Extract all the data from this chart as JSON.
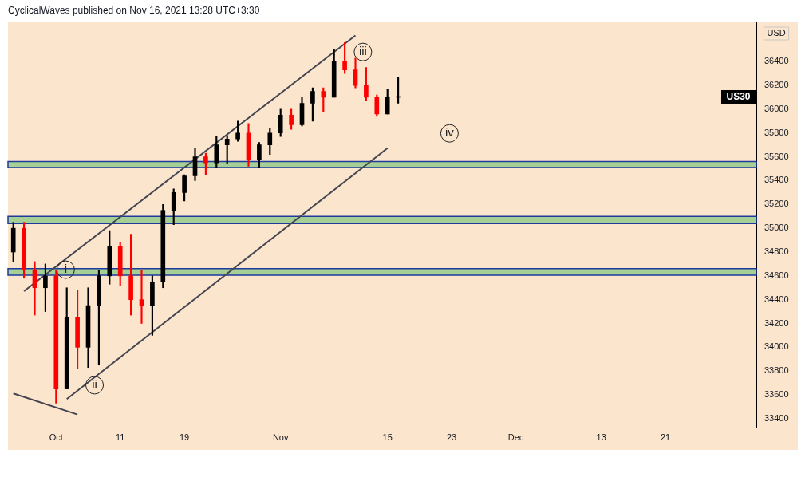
{
  "chart_data": {
    "type": "candlestick",
    "title": "CyclicalWaves published on Nov 16, 2021 13:28 UTC+3:30",
    "ylabel": "USD",
    "categories": [
      null,
      null,
      null,
      null,
      "Oct",
      null,
      null,
      null,
      null,
      null,
      "11",
      null,
      null,
      null,
      null,
      null,
      "19",
      null,
      null,
      null,
      null,
      null,
      null,
      null,
      null,
      "Nov",
      null,
      null,
      null,
      null,
      null,
      null,
      null,
      null,
      null,
      "15",
      null,
      null,
      null,
      null,
      null,
      "23",
      null,
      null,
      null,
      null,
      null,
      "Dec",
      null,
      null,
      null,
      null,
      null,
      null,
      null,
      "13",
      null,
      null,
      null,
      null,
      null,
      "21",
      null,
      null,
      null,
      null,
      null,
      null,
      null,
      null
    ],
    "ohlc": [
      [
        34800,
        35050,
        34720,
        35000
      ],
      [
        35000,
        35050,
        34580,
        34650
      ],
      [
        34650,
        34720,
        34270,
        34500
      ],
      [
        34500,
        34700,
        34300,
        34600
      ],
      [
        34600,
        34650,
        33530,
        33650
      ],
      [
        33650,
        34500,
        33650,
        34250
      ],
      [
        34250,
        34480,
        33820,
        34000
      ],
      [
        34000,
        34500,
        33830,
        34350
      ],
      [
        34350,
        34650,
        33850,
        34600
      ],
      [
        34600,
        34980,
        34530,
        34850
      ],
      [
        34850,
        34880,
        34520,
        34600
      ],
      [
        34600,
        34950,
        34270,
        34400
      ],
      [
        34400,
        34650,
        34200,
        34350
      ],
      [
        34350,
        34600,
        34100,
        34550
      ],
      [
        34550,
        35200,
        34500,
        35150
      ],
      [
        35150,
        35330,
        35030,
        35300
      ],
      [
        35300,
        35450,
        35230,
        35440
      ],
      [
        35440,
        35670,
        35400,
        35600
      ],
      [
        35600,
        35630,
        35450,
        35550
      ],
      [
        35550,
        35770,
        35510,
        35700
      ],
      [
        35700,
        35780,
        35540,
        35750
      ],
      [
        35750,
        35900,
        35730,
        35800
      ],
      [
        35800,
        35880,
        35520,
        35580
      ],
      [
        35580,
        35720,
        35510,
        35700
      ],
      [
        35700,
        35840,
        35620,
        35800
      ],
      [
        35800,
        36000,
        35770,
        35950
      ],
      [
        35950,
        36000,
        35830,
        35870
      ],
      [
        35870,
        36100,
        35860,
        36050
      ],
      [
        36050,
        36180,
        35900,
        36150
      ],
      [
        36150,
        36180,
        35980,
        36100
      ],
      [
        36100,
        36500,
        36100,
        36400
      ],
      [
        36400,
        36560,
        36300,
        36330
      ],
      [
        36330,
        36430,
        36180,
        36200
      ],
      [
        36200,
        36350,
        36070,
        36100
      ],
      [
        36100,
        36120,
        35940,
        35960
      ],
      [
        35960,
        36170,
        35960,
        36100
      ],
      [
        36100,
        36270,
        36050,
        36100
      ],
      null,
      null,
      null,
      null,
      null,
      null,
      null,
      null,
      null,
      null,
      null,
      null,
      null,
      null,
      null,
      null,
      null,
      null,
      null,
      null,
      null,
      null,
      null,
      null,
      null,
      null,
      null,
      null,
      null,
      null,
      null,
      null,
      null
    ],
    "colors": [
      "#000000",
      "#ff0000",
      "#ff0000",
      "#000000",
      "#ff0000",
      "#000000",
      "#ff0000",
      "#000000",
      "#000000",
      "#000000",
      "#ff0000",
      "#ff0000",
      "#ff0000",
      "#000000",
      "#000000",
      "#000000",
      "#000000",
      "#000000",
      "#ff0000",
      "#000000",
      "#000000",
      "#000000",
      "#ff0000",
      "#000000",
      "#000000",
      "#000000",
      "#ff0000",
      "#000000",
      "#000000",
      "#ff0000",
      "#000000",
      "#ff0000",
      "#ff0000",
      "#ff0000",
      "#ff0000",
      "#000000",
      "#000000",
      null,
      null,
      null,
      null,
      null,
      null,
      null,
      null,
      null,
      null,
      null,
      null,
      null,
      null,
      null,
      null,
      null,
      null,
      null,
      null,
      null,
      null,
      null,
      null,
      null,
      null,
      null,
      null,
      null,
      null,
      null,
      null,
      null
    ],
    "series": [
      {
        "type": "line",
        "color": "#434651",
        "values": [
          null,
          34471,
          null,
          null,
          null,
          null,
          null,
          null,
          null,
          null,
          null,
          null,
          null,
          null,
          null,
          null,
          null,
          null,
          null,
          null,
          null,
          null,
          null,
          null,
          null,
          null,
          null,
          null,
          null,
          null,
          null,
          null,
          36619,
          null,
          null,
          null,
          null,
          null,
          null,
          null,
          null,
          null,
          null,
          null,
          null,
          null,
          null,
          null,
          null,
          null,
          null,
          null,
          null,
          null,
          null,
          null,
          null,
          null,
          null,
          null,
          null,
          null,
          null,
          null,
          null,
          null,
          null,
          null,
          null,
          null
        ]
      },
      {
        "type": "line",
        "color": "#434651",
        "values": [
          null,
          null,
          null,
          null,
          null,
          33565,
          null,
          null,
          null,
          null,
          null,
          null,
          null,
          null,
          null,
          null,
          null,
          null,
          null,
          null,
          null,
          null,
          null,
          null,
          null,
          null,
          null,
          null,
          null,
          null,
          null,
          null,
          null,
          null,
          null,
          35673,
          null,
          null,
          null,
          null,
          null,
          null,
          null,
          null,
          null,
          null,
          null,
          null,
          null,
          null,
          null,
          null,
          null,
          null,
          null,
          null,
          null,
          null,
          null,
          null,
          null,
          null,
          null,
          null,
          null,
          null,
          null,
          null,
          null,
          null
        ]
      },
      {
        "type": "line",
        "color": "#434651",
        "values": [
          33612,
          null,
          null,
          null,
          null,
          null,
          33435,
          null,
          null,
          null,
          null,
          null,
          null,
          null,
          null,
          null,
          null,
          null,
          null,
          null,
          null,
          null,
          null,
          null,
          null,
          null,
          null,
          null,
          null,
          null,
          null,
          null,
          null,
          null,
          null,
          null,
          null,
          null,
          null,
          null,
          null,
          null,
          null,
          null,
          null,
          null,
          null,
          null,
          null,
          null,
          null,
          null,
          null,
          null,
          null,
          null,
          null,
          null,
          null,
          null,
          null,
          null,
          null,
          null,
          null,
          null,
          null,
          null,
          null,
          null
        ]
      }
    ],
    "bands": [
      {
        "axis": "y",
        "from": 35510,
        "to": 35560,
        "color": "#a5cf95"
      },
      {
        "axis": "y",
        "from": 35040,
        "to": 35100,
        "color": "#a5cf95"
      },
      {
        "axis": "y",
        "from": 34605,
        "to": 34660,
        "color": "#a5cf95"
      }
    ],
    "annotations": [
      {
        "text": "i",
        "y": 34652
      },
      {
        "text": "ii",
        "y": 33681
      },
      {
        "text": "iii",
        "y": 36481
      },
      {
        "text": "iv",
        "y": 35797
      },
      {
        "text": "US30",
        "y": 36100
      }
    ],
    "ylim": [
      33320,
      36730
    ],
    "yticks": [
      33400,
      33600,
      33800,
      34000,
      34200,
      34400,
      34600,
      34800,
      35000,
      35200,
      35400,
      35600,
      35800,
      36000,
      36200,
      36400
    ],
    "legend": false
  }
}
